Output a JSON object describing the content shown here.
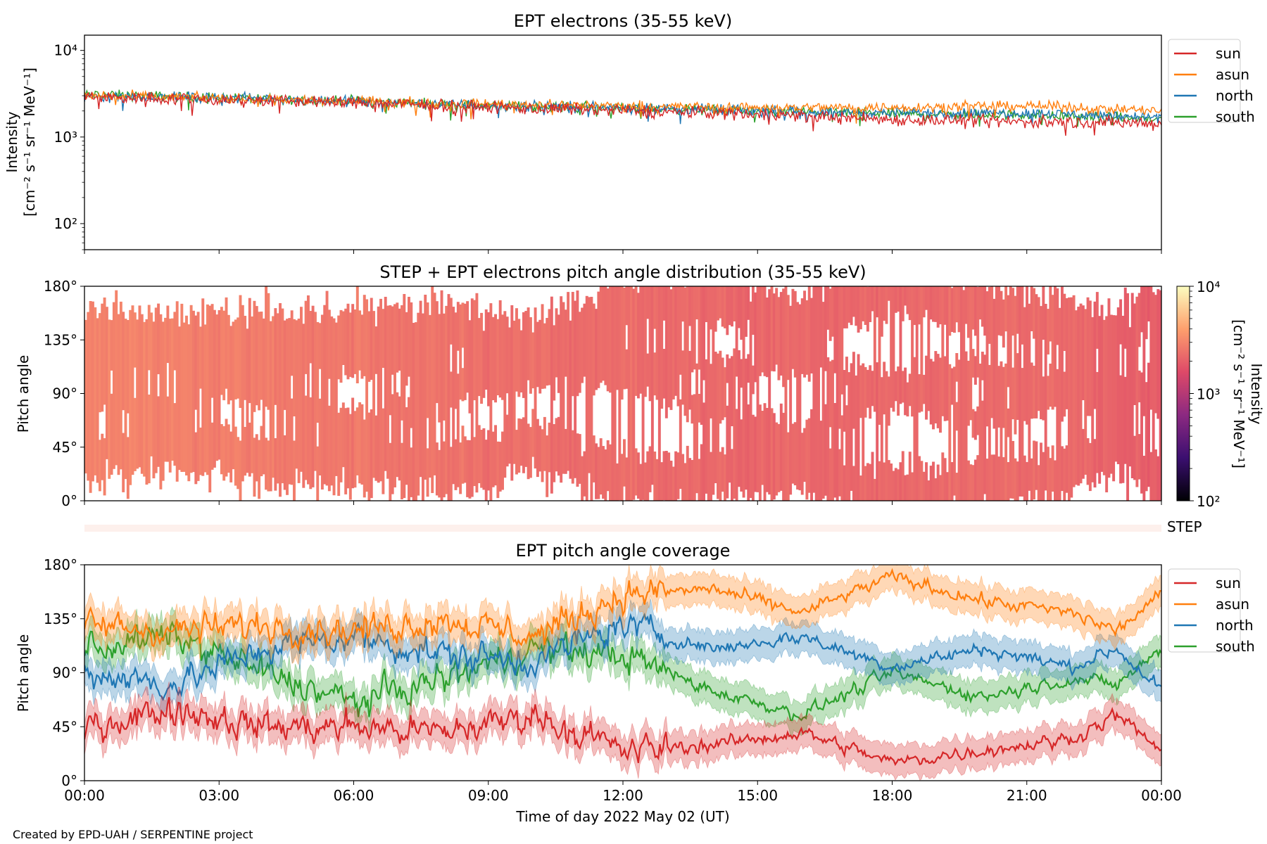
{
  "footer": {
    "credit": "Created by EPD-UAH / SERPENTINE project"
  },
  "colors": {
    "sun": "#d62728",
    "asun": "#ff7f0e",
    "north": "#1f77b4",
    "south": "#2ca02c",
    "step_band": "#fdf0ec",
    "colormap": [
      "#000004",
      "#3b0f70",
      "#8c2981",
      "#de4968",
      "#fe9f6d",
      "#fcfdbf"
    ]
  },
  "chart_data": [
    {
      "type": "line",
      "title": "EPT electrons (35-55 keV)",
      "ylabel": [
        "Intensity",
        "[cm⁻² s⁻¹ sr⁻¹ MeV⁻¹]"
      ],
      "yscale": "log",
      "ylim": [
        50,
        15000
      ],
      "yticks": [
        "10²",
        "10³",
        "10⁴"
      ],
      "xlim": [
        "00:00",
        "24:00"
      ],
      "legend": "outside-right",
      "series": [
        {
          "name": "sun",
          "x_hours": [
            0,
            3,
            6,
            9,
            12,
            15,
            18,
            21,
            24
          ],
          "values": [
            2900,
            2700,
            2500,
            2200,
            2000,
            1850,
            1600,
            1500,
            1450
          ]
        },
        {
          "name": "asun",
          "x_hours": [
            0,
            3,
            6,
            9,
            12,
            15,
            18,
            21,
            24
          ],
          "values": [
            3000,
            2800,
            2600,
            2400,
            2300,
            2200,
            2200,
            2300,
            2000
          ]
        },
        {
          "name": "north",
          "x_hours": [
            0,
            3,
            6,
            9,
            12,
            15,
            18,
            21,
            24
          ],
          "values": [
            3000,
            2850,
            2600,
            2300,
            2200,
            2000,
            1900,
            1900,
            1700
          ]
        },
        {
          "name": "south",
          "x_hours": [
            0,
            3,
            6,
            9,
            12,
            15,
            18,
            21,
            24
          ],
          "values": [
            3100,
            2850,
            2600,
            2300,
            2150,
            2000,
            1850,
            1800,
            1600
          ]
        }
      ]
    },
    {
      "type": "heatmap",
      "title": "STEP + EPT electrons pitch angle distribution (35-55 keV)",
      "ylabel": "Pitch angle",
      "ylim": [
        0,
        180
      ],
      "yticks": [
        "0°",
        "45°",
        "90°",
        "135°",
        "180°"
      ],
      "xlim": [
        "00:00",
        "24:00"
      ],
      "colorbar": {
        "label": [
          "Intensity",
          "[cm⁻² s⁻¹ sr⁻¹ MeV⁻¹]"
        ],
        "scale": "log",
        "range": [
          100,
          10000
        ],
        "ticks": [
          "10²",
          "10³",
          "10⁴"
        ]
      },
      "step_band_label": "STEP"
    },
    {
      "type": "line",
      "title": "EPT pitch angle coverage",
      "ylabel": "Pitch angle",
      "ylim": [
        0,
        180
      ],
      "yticks": [
        "0°",
        "45°",
        "90°",
        "135°",
        "180°"
      ],
      "xlabel": "Time of day 2022 May 02 (UT)",
      "xticks": [
        "00:00",
        "03:00",
        "06:00",
        "09:00",
        "12:00",
        "15:00",
        "18:00",
        "21:00",
        "00:00"
      ],
      "legend": "outside-right",
      "series": [
        {
          "name": "sun",
          "x_hours": [
            0,
            2,
            4,
            6,
            8,
            10,
            12,
            14,
            16,
            18,
            20,
            22,
            23,
            24
          ],
          "values": [
            45,
            60,
            45,
            45,
            40,
            55,
            25,
            30,
            40,
            15,
            25,
            35,
            55,
            25
          ]
        },
        {
          "name": "asun",
          "x_hours": [
            0,
            2,
            4,
            6,
            8,
            10,
            12,
            14,
            16,
            18,
            20,
            22,
            23,
            24
          ],
          "values": [
            130,
            125,
            130,
            125,
            135,
            120,
            155,
            160,
            140,
            170,
            150,
            140,
            125,
            155
          ]
        },
        {
          "name": "north",
          "x_hours": [
            0,
            2,
            4,
            6,
            8,
            10,
            12,
            14,
            16,
            18,
            20,
            22,
            23,
            24
          ],
          "values": [
            90,
            80,
            110,
            120,
            105,
            100,
            130,
            110,
            120,
            95,
            110,
            95,
            110,
            75
          ]
        },
        {
          "name": "south",
          "x_hours": [
            0,
            2,
            4,
            6,
            8,
            10,
            12,
            14,
            16,
            18,
            20,
            22,
            23,
            24
          ],
          "values": [
            110,
            120,
            90,
            65,
            85,
            110,
            105,
            75,
            55,
            90,
            70,
            85,
            80,
            110
          ]
        }
      ]
    }
  ]
}
